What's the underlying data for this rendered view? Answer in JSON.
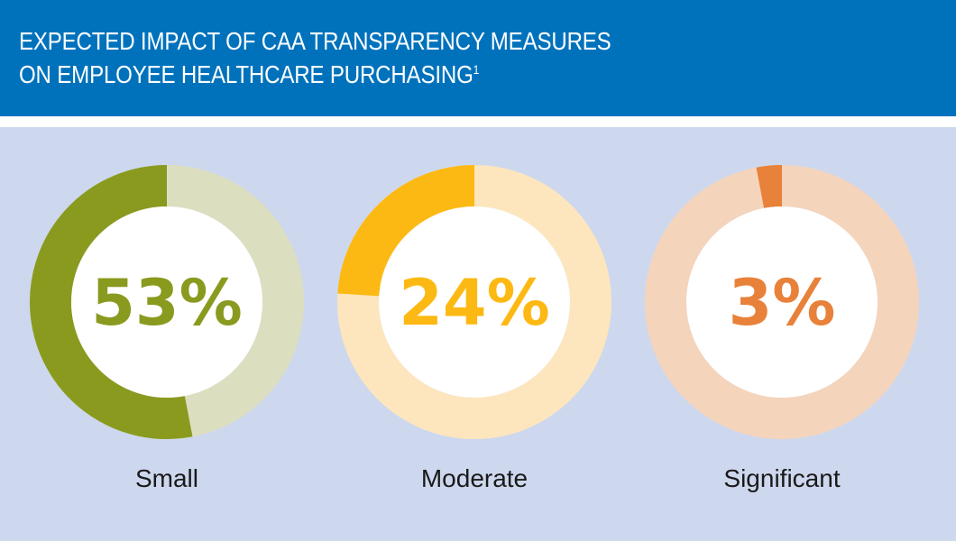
{
  "header": {
    "title_line1": "EXPECTED IMPACT OF CAA TRANSPARENCY MEASURES",
    "title_line2": "ON EMPLOYEE HEALTHCARE PURCHASING",
    "footnote_marker": "1"
  },
  "chart_data": {
    "type": "pie",
    "title": "EXPECTED IMPACT OF CAA TRANSPARENCY MEASURES ON EMPLOYEE HEALTHCARE PURCHASING",
    "categories": [
      "Small",
      "Moderate",
      "Significant"
    ],
    "values": [
      53,
      24,
      3
    ],
    "labels": [
      "53%",
      "24%",
      "3%"
    ],
    "colors": [
      "#8A9A1F",
      "#FDB913",
      "#E8813A"
    ],
    "track_colors": [
      "#DCDEC0",
      "#FDE6BD",
      "#F5D4BC"
    ]
  }
}
